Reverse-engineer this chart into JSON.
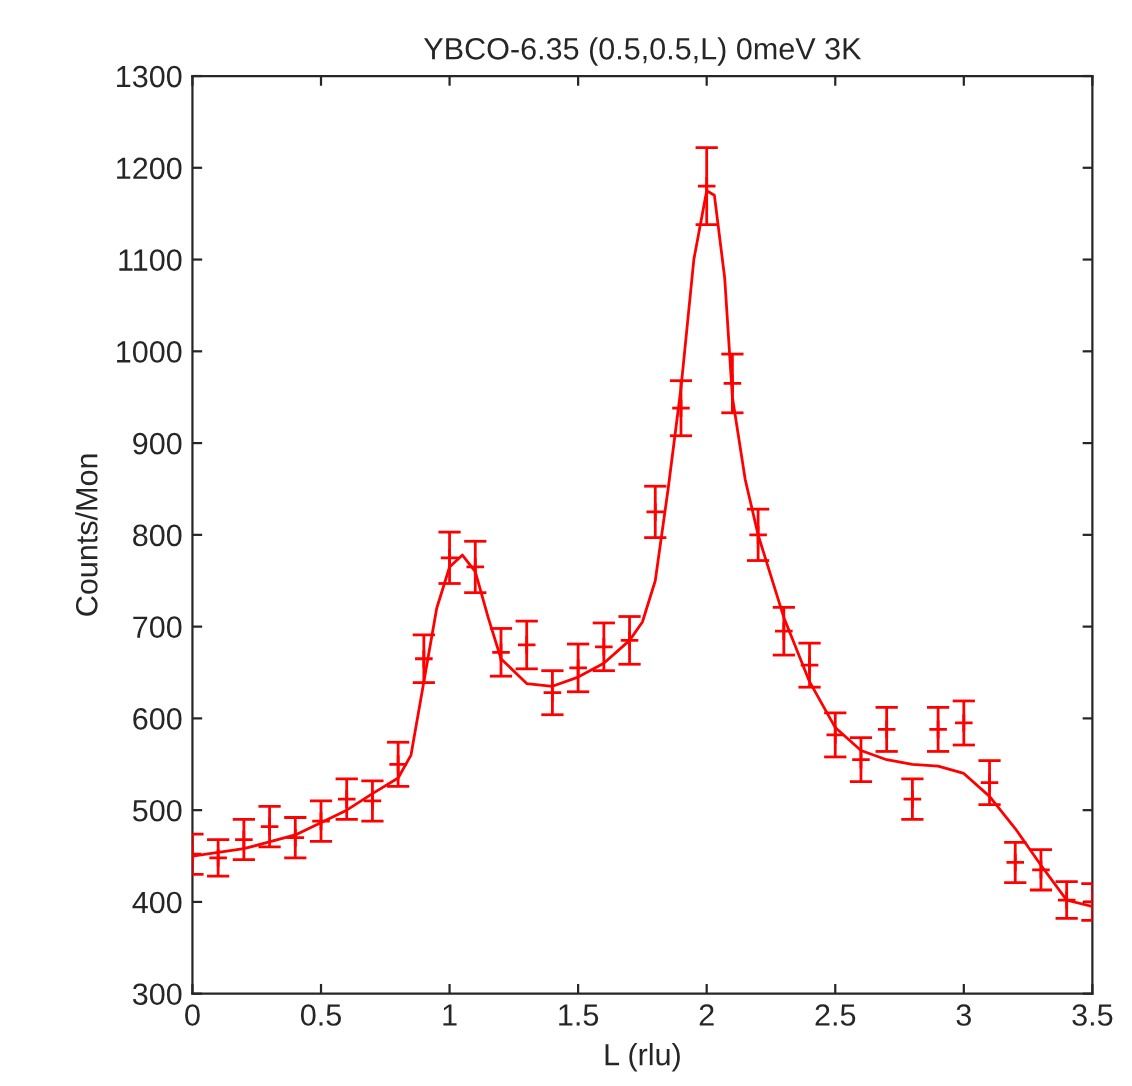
{
  "chart_data": {
    "type": "scatter",
    "title": "YBCO-6.35 (0.5,0.5,L) 0meV 3K",
    "xlabel": "L (rlu)",
    "ylabel": "Counts/Mon",
    "xlim": [
      0,
      3.5
    ],
    "xticks": [
      0,
      0.5,
      1,
      1.5,
      2,
      2.5,
      3,
      3.5
    ],
    "ylim": [
      300,
      1300
    ],
    "yticks": [
      300,
      400,
      500,
      600,
      700,
      800,
      900,
      1000,
      1100,
      1200,
      1300
    ],
    "grid": false,
    "legend": false,
    "series": [
      {
        "color": "#ff0000",
        "marker": "cross",
        "x": [
          0,
          0.1,
          0.2,
          0.3,
          0.4,
          0.5,
          0.6,
          0.7,
          0.8,
          0.9,
          1.0,
          1.1,
          1.2,
          1.3,
          1.4,
          1.5,
          1.6,
          1.7,
          1.8,
          1.9,
          2.0,
          2.1,
          2.2,
          2.3,
          2.4,
          2.5,
          2.6,
          2.7,
          2.8,
          2.9,
          3.0,
          3.1,
          3.2,
          3.3,
          3.4,
          3.5
        ],
        "values": [
          452,
          448,
          468,
          482,
          470,
          488,
          512,
          510,
          550,
          665,
          775,
          765,
          672,
          680,
          628,
          655,
          678,
          685,
          825,
          938,
          1180,
          965,
          800,
          695,
          658,
          582,
          555,
          588,
          512,
          588,
          595,
          530,
          443,
          435,
          402,
          400
        ],
        "errors": [
          22,
          20,
          22,
          22,
          22,
          22,
          22,
          22,
          24,
          26,
          28,
          28,
          26,
          26,
          24,
          26,
          26,
          26,
          28,
          30,
          42,
          32,
          28,
          26,
          24,
          24,
          24,
          24,
          22,
          24,
          24,
          24,
          22,
          22,
          20,
          20
        ]
      },
      {
        "type": "line",
        "color": "#ff0000",
        "marker": "none",
        "x": [
          0,
          0.2,
          0.4,
          0.6,
          0.7,
          0.8,
          0.85,
          0.9,
          0.95,
          1.0,
          1.05,
          1.1,
          1.15,
          1.2,
          1.3,
          1.4,
          1.5,
          1.6,
          1.7,
          1.75,
          1.8,
          1.85,
          1.9,
          1.95,
          2.0,
          2.03,
          2.07,
          2.1,
          2.15,
          2.2,
          2.3,
          2.4,
          2.5,
          2.6,
          2.7,
          2.8,
          2.9,
          3.0,
          3.1,
          3.2,
          3.3,
          3.4,
          3.5
        ],
        "values": [
          450,
          458,
          473,
          500,
          518,
          535,
          560,
          640,
          720,
          765,
          778,
          760,
          710,
          665,
          638,
          635,
          645,
          660,
          685,
          705,
          750,
          850,
          960,
          1100,
          1175,
          1170,
          1080,
          950,
          860,
          800,
          710,
          640,
          590,
          565,
          555,
          550,
          548,
          540,
          515,
          480,
          440,
          402,
          395
        ]
      }
    ]
  }
}
